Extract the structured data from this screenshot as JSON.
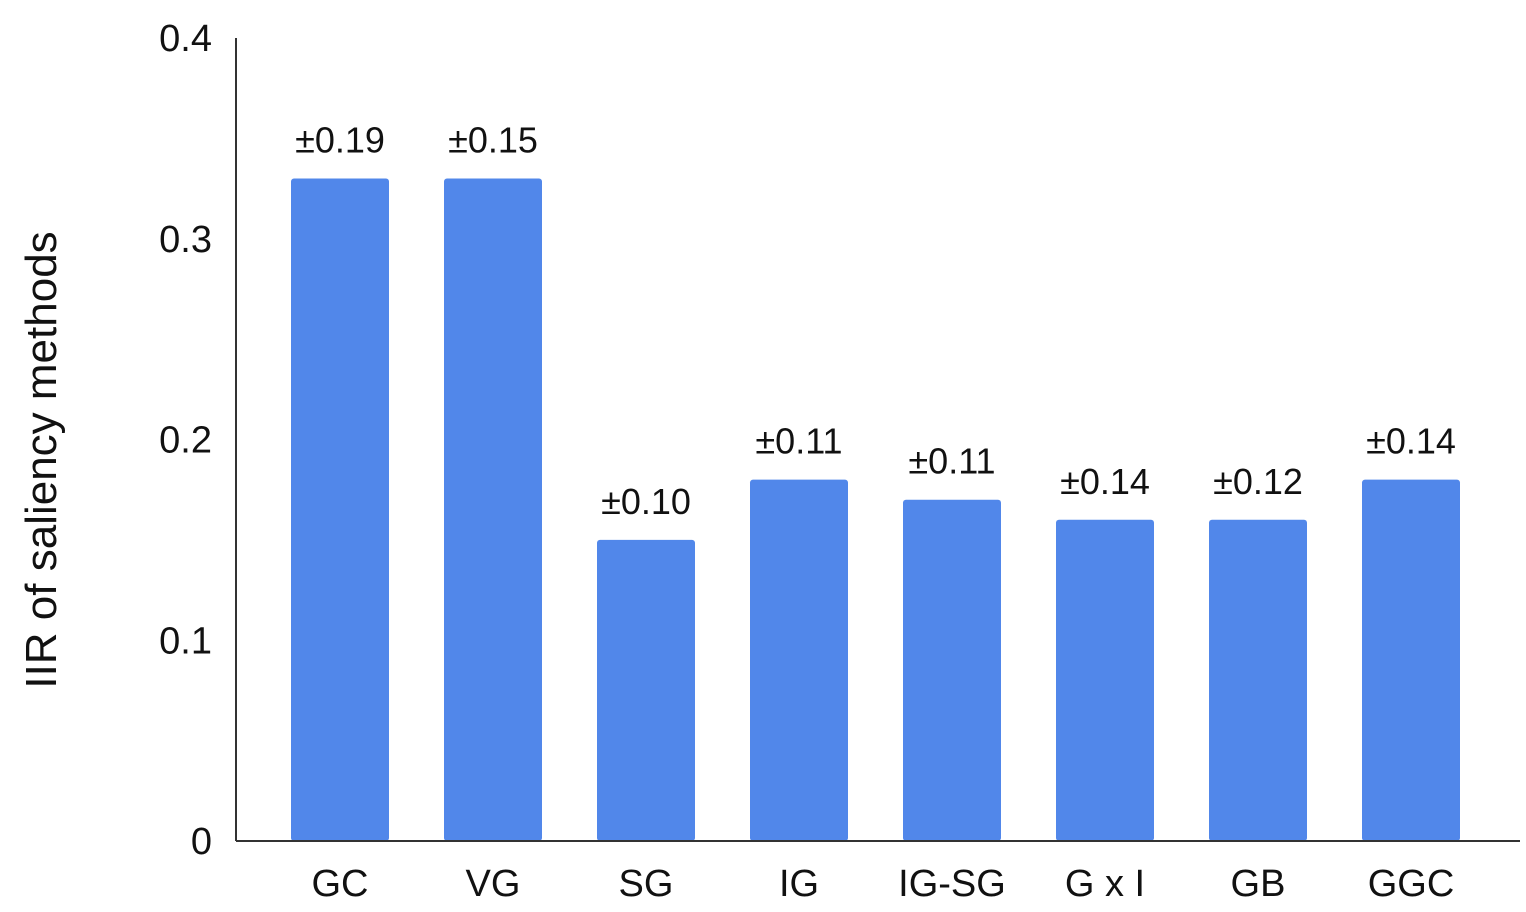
{
  "chart_data": {
    "type": "bar",
    "title": "",
    "xlabel": "",
    "ylabel": "IIR of saliency methods",
    "categories": [
      "GC",
      "VG",
      "SG",
      "IG",
      "IG-SG",
      "G x I",
      "GB",
      "GGC"
    ],
    "values": [
      0.33,
      0.33,
      0.15,
      0.18,
      0.17,
      0.16,
      0.16,
      0.18
    ],
    "data_labels": [
      "±0.19",
      "±0.15",
      "±0.10",
      "±0.11",
      "±0.11",
      "±0.14",
      "±0.12",
      "±0.14"
    ],
    "ylim": [
      0,
      0.4
    ],
    "yticks": [
      "0",
      "0.1",
      "0.2",
      "0.3",
      "0.4"
    ],
    "grid": false,
    "bar_color": "#5187EA",
    "axis_color": "#333333"
  }
}
